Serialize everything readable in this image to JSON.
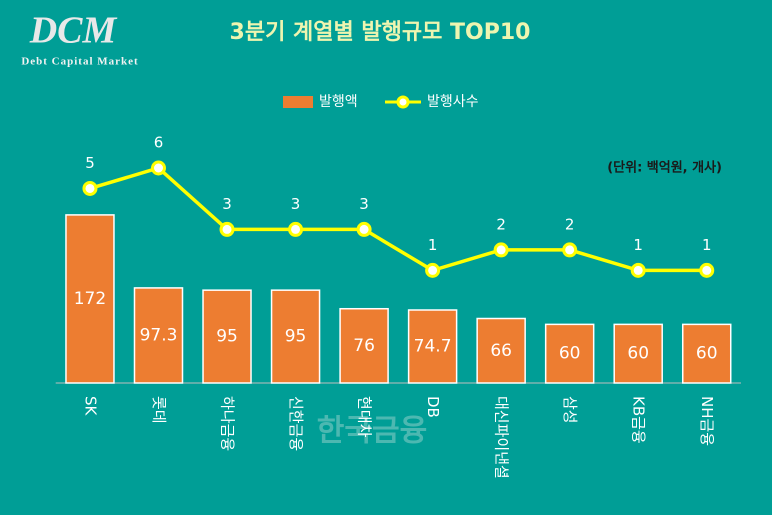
{
  "chart_data": {
    "type": "bar",
    "title": "3분기 계열별 발행규모 TOP10",
    "logo": "DCM",
    "logo_subtitle": "Debt Capital Market",
    "unit_label": "(단위: 백억원, 개사)",
    "watermark": "한국금융",
    "categories": [
      "SK",
      "롯데",
      "하나금융",
      "신한금융",
      "현대차",
      "DB",
      "대신파이낸셜",
      "삼성",
      "KB금융",
      "NH금융"
    ],
    "series": [
      {
        "name": "발행액",
        "type": "bar",
        "color": "#ed7d31",
        "values": [
          172,
          97.3,
          95,
          95,
          76,
          74.7,
          66,
          60,
          60,
          60
        ]
      },
      {
        "name": "발행사수",
        "type": "line",
        "axis": "y2",
        "color": "#ffff00",
        "values": [
          5,
          6,
          3,
          3,
          3,
          1,
          2,
          2,
          1,
          1
        ]
      }
    ],
    "ylim": [
      0,
      220
    ],
    "y2lim": [
      -4.5,
      6
    ],
    "legend": "top"
  }
}
